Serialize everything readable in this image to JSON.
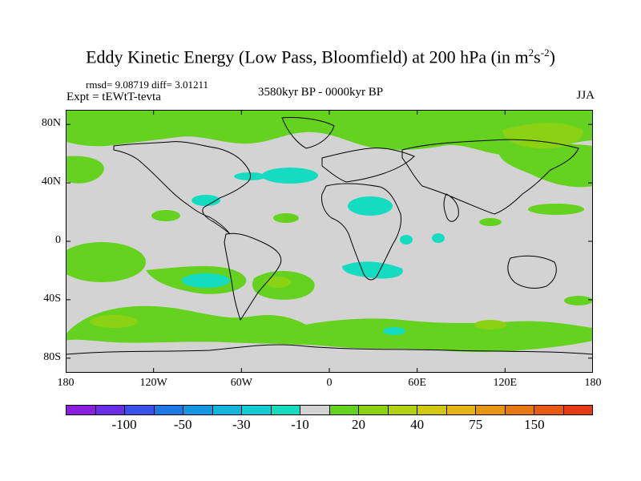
{
  "title": {
    "main": "Eddy Kinetic Energy (Low Pass, Bloomfield) at 200 hPa (in m",
    "sup1": "2",
    "mid": "s",
    "sup2": "-2",
    "close": ")"
  },
  "stats": "rmsd= 9.08719 diff= 3.01211",
  "expt": "Expt = tEWtT-tevta",
  "period": "3580kyr BP - 0000kyr BP",
  "season": "JJA",
  "map": {
    "lat_labels": [
      "80N",
      "40N",
      "0",
      "40S",
      "80S"
    ],
    "lat_values": [
      80,
      40,
      0,
      -40,
      -80
    ],
    "lon_labels": [
      "180",
      "120W",
      "60W",
      "0",
      "60E",
      "120E",
      "180"
    ],
    "lon_values": [
      -180,
      -120,
      -60,
      0,
      60,
      120,
      180
    ],
    "background_color": "#d3d3d3",
    "lon_range": [
      -180,
      180
    ],
    "lat_range": [
      -90,
      90
    ]
  },
  "colorbar": {
    "colors": [
      "#8c1ee0",
      "#6a2ee6",
      "#3c50ea",
      "#1e78e6",
      "#1496e0",
      "#14b4dc",
      "#14cbd6",
      "#14dcc0",
      "#d3d3d3",
      "#64d21e",
      "#8cd214",
      "#b4d214",
      "#d2c814",
      "#e6b414",
      "#e69614",
      "#e67814",
      "#e65a14",
      "#e63c14"
    ],
    "labels": [
      "-100",
      "-50",
      "-30",
      "-10",
      "20",
      "40",
      "75",
      "150"
    ]
  },
  "fill_colors": {
    "green": "#64d21e",
    "light_green": "#8cd214",
    "cyan": "#14dcc0",
    "cyan_dark": "#14cbd6"
  }
}
